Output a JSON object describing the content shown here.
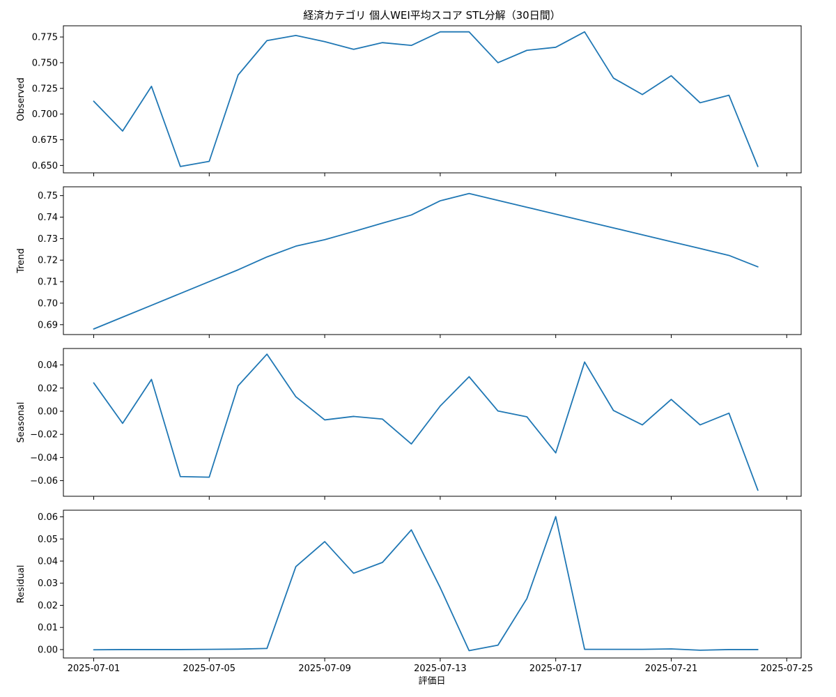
{
  "chart_data": {
    "type": "line",
    "title": "経済カテゴリ 個人WEI平均スコア STL分解（30日間）",
    "xlabel": "評価日",
    "x_tick_labels": [
      "2025-07-01",
      "2025-07-05",
      "2025-07-09",
      "2025-07-13",
      "2025-07-17",
      "2025-07-21",
      "2025-07-25"
    ],
    "x_tick_days": [
      0,
      4,
      8,
      12,
      16,
      20,
      24
    ],
    "x_dates": [
      "2025-07-01",
      "2025-07-02",
      "2025-07-03",
      "2025-07-04",
      "2025-07-05",
      "2025-07-06",
      "2025-07-07",
      "2025-07-08",
      "2025-07-09",
      "2025-07-10",
      "2025-07-11",
      "2025-07-12",
      "2025-07-13",
      "2025-07-14",
      "2025-07-15",
      "2025-07-16",
      "2025-07-17",
      "2025-07-18",
      "2025-07-19",
      "2025-07-20",
      "2025-07-21",
      "2025-07-22",
      "2025-07-23",
      "2025-07-24"
    ],
    "xlim": [
      -1.05,
      24.5
    ],
    "line_color": "#1f77b4",
    "grid": false,
    "panels": [
      {
        "ylabel": "Observed",
        "ylim": [
          0.6428,
          0.7859
        ],
        "yticks": [
          0.65,
          0.675,
          0.7,
          0.725,
          0.75,
          0.775
        ],
        "ytick_labels": [
          "0.650",
          "0.675",
          "0.700",
          "0.725",
          "0.750",
          "0.775"
        ],
        "values": [
          0.7125,
          0.6835,
          0.727,
          0.649,
          0.654,
          0.738,
          0.7715,
          0.7765,
          0.7705,
          0.763,
          0.7695,
          0.7668,
          0.78,
          0.78,
          0.75,
          0.762,
          0.765,
          0.78,
          0.735,
          0.719,
          0.7373,
          0.711,
          0.7183,
          0.649
        ]
      },
      {
        "ylabel": "Trend",
        "ylim": [
          0.6854,
          0.7541
        ],
        "yticks": [
          0.69,
          0.7,
          0.71,
          0.72,
          0.73,
          0.74,
          0.75
        ],
        "ytick_labels": [
          "0.69",
          "0.70",
          "0.71",
          "0.72",
          "0.73",
          "0.74",
          "0.75"
        ],
        "values": [
          0.688,
          0.6935,
          0.699,
          0.7045,
          0.71,
          0.7155,
          0.7215,
          0.7265,
          0.7295,
          0.7333,
          0.7372,
          0.741,
          0.7476,
          0.751,
          0.7478,
          0.7446,
          0.7414,
          0.7382,
          0.735,
          0.7318,
          0.7286,
          0.7254,
          0.7222,
          0.7169
        ]
      },
      {
        "ylabel": "Seasonal",
        "ylim": [
          -0.0735,
          0.0542
        ],
        "yticks": [
          0.04,
          0.02,
          0.0,
          -0.02,
          -0.04,
          -0.06
        ],
        "ytick_labels": [
          "0.04",
          "0.02",
          "0.00",
          "−0.02",
          "−0.04",
          "−0.06"
        ],
        "values": [
          0.0245,
          -0.0105,
          0.0275,
          -0.0565,
          -0.057,
          0.022,
          0.0493,
          0.0125,
          -0.0075,
          -0.0045,
          -0.0068,
          -0.0283,
          0.0045,
          0.0298,
          0.0002,
          -0.0048,
          -0.036,
          0.0425,
          0.0006,
          -0.0118,
          0.0102,
          -0.0118,
          -0.0017,
          -0.0683
        ]
      },
      {
        "ylabel": "Residual",
        "ylim": [
          -0.0038,
          0.063
        ],
        "yticks": [
          0.0,
          0.01,
          0.02,
          0.03,
          0.04,
          0.05,
          0.06
        ],
        "ytick_labels": [
          "0.00",
          "0.01",
          "0.02",
          "0.03",
          "0.04",
          "0.05",
          "0.06"
        ],
        "values": [
          -0.0001,
          0.0,
          0.0,
          0.0,
          0.0001,
          0.0002,
          0.0005,
          0.0375,
          0.0488,
          0.0345,
          0.0394,
          0.0541,
          0.028,
          -0.0005,
          0.002,
          0.023,
          0.0601,
          0.0001,
          0.0001,
          0.0001,
          0.0003,
          -0.0003,
          0.0,
          0.0
        ]
      }
    ]
  }
}
